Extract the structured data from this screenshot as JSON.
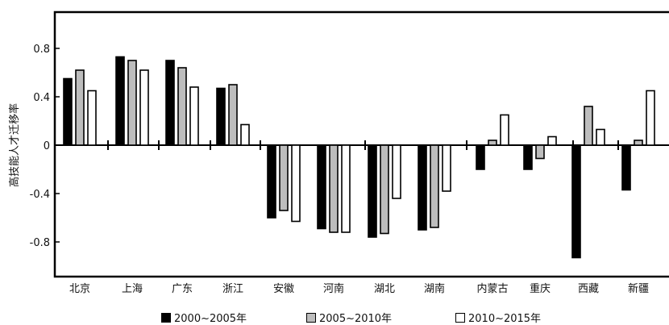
{
  "chart_data": {
    "type": "bar",
    "ylabel": "高技能人才迁移率",
    "ylim": [
      -1.0,
      1.1
    ],
    "yticks": [
      "0.8",
      "0.4",
      "0",
      "-0.4",
      "-0.8"
    ],
    "ytick_values": [
      0.8,
      0.4,
      0,
      -0.4,
      -0.8
    ],
    "categories": [
      "北京",
      "上海",
      "广东",
      "浙江",
      "安徽",
      "河南",
      "湖北",
      "湖南",
      "内蒙古",
      "重庆",
      "西藏",
      "新疆"
    ],
    "series": [
      {
        "name": "2000~2005年",
        "color": "#000000",
        "values": [
          0.55,
          0.73,
          0.7,
          0.47,
          -0.6,
          -0.69,
          -0.76,
          -0.7,
          -0.2,
          -0.2,
          -0.93,
          -0.37
        ]
      },
      {
        "name": "2005~2010年",
        "color": "#bdbdbd",
        "values": [
          0.62,
          0.7,
          0.64,
          0.5,
          -0.54,
          -0.72,
          -0.73,
          -0.68,
          0.04,
          -0.11,
          0.32,
          0.04
        ]
      },
      {
        "name": "2010~2015年",
        "color": "#ffffff",
        "values": [
          0.45,
          0.62,
          0.48,
          0.17,
          -0.63,
          -0.72,
          -0.44,
          -0.38,
          0.25,
          0.07,
          0.13,
          0.45
        ]
      }
    ],
    "grid": false,
    "legend_position": "bottom"
  }
}
